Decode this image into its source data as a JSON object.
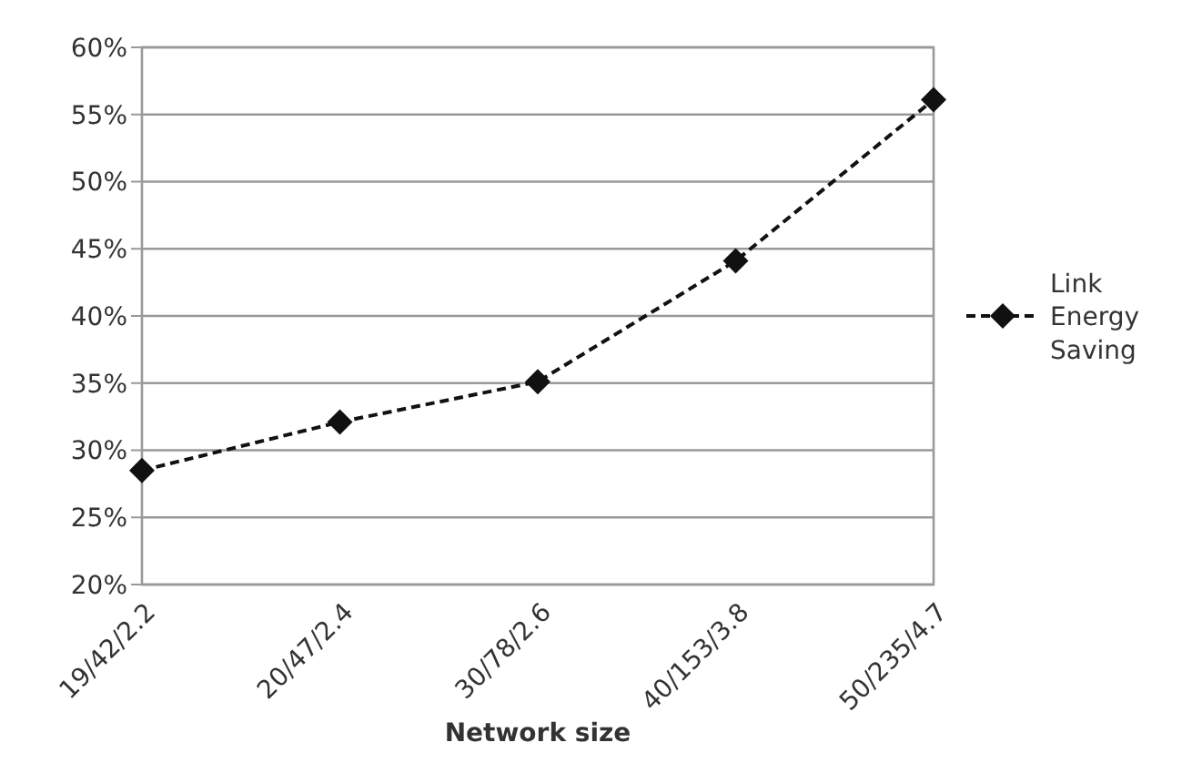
{
  "chart_data": {
    "type": "line",
    "xlabel": "Network size",
    "categories": [
      "19/42/2.2",
      "20/47/2.4",
      "30/78/2.6",
      "40/153/3.8",
      "50/235/4.7"
    ],
    "series": [
      {
        "name": "Link Energy Saving",
        "color": "#111111",
        "values": [
          28.5,
          32.1,
          35.1,
          44.1,
          56.1
        ]
      }
    ],
    "ylim": [
      20,
      60
    ],
    "yticks": [
      {
        "value": 20,
        "label": "20%"
      },
      {
        "value": 25,
        "label": "25%"
      },
      {
        "value": 30,
        "label": "30%"
      },
      {
        "value": 35,
        "label": "35%"
      },
      {
        "value": 40,
        "label": "40%"
      },
      {
        "value": 45,
        "label": "45%"
      },
      {
        "value": 50,
        "label": "50%"
      },
      {
        "value": 55,
        "label": "55%"
      },
      {
        "value": 60,
        "label": "60%"
      }
    ],
    "grid": "y",
    "legend": "right",
    "marker": "diamond",
    "line_style": "dashed"
  }
}
